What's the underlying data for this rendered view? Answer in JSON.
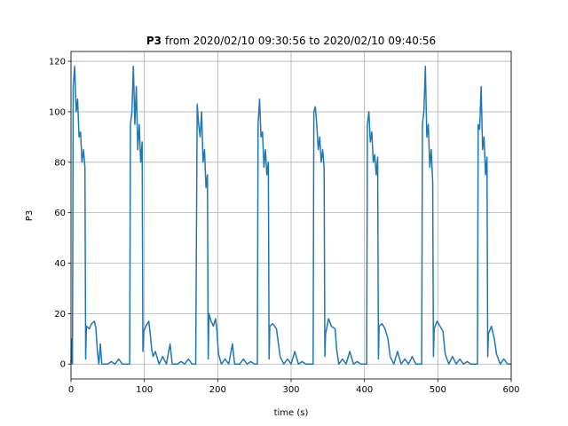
{
  "chart_data": {
    "type": "line",
    "title_bold": "P3",
    "title": "from 2020/02/10 09:30:56 to 2020/02/10 09:40:56",
    "xlabel": "time (s)",
    "ylabel": "P3",
    "color": "#1f77b4",
    "grid": true,
    "xlim": [
      0,
      600
    ],
    "xticks": [
      0,
      100,
      200,
      300,
      400,
      500,
      600
    ],
    "ylim": [
      -5.9,
      123.9
    ],
    "yticks": [
      0,
      20,
      40,
      60,
      80,
      100,
      120
    ],
    "x": [
      0,
      1,
      2,
      3,
      5,
      7,
      9,
      11,
      13,
      15,
      17,
      19,
      20,
      21,
      25,
      28,
      32,
      34,
      36,
      38,
      40,
      42,
      50,
      55,
      60,
      65,
      70,
      75,
      80,
      81,
      83,
      85,
      87,
      89,
      91,
      93,
      95,
      97,
      98,
      99,
      102,
      106,
      108,
      110,
      112,
      115,
      118,
      120,
      125,
      130,
      135,
      138,
      145,
      150,
      155,
      160,
      165,
      170,
      172,
      174,
      176,
      178,
      180,
      182,
      184,
      186,
      187,
      188,
      191,
      194,
      197,
      199,
      201,
      205,
      210,
      215,
      220,
      223,
      230,
      235,
      240,
      245,
      250,
      254,
      255,
      257,
      259,
      261,
      263,
      265,
      267,
      269,
      270,
      271,
      275,
      280,
      285,
      290,
      295,
      300,
      305,
      310,
      315,
      320,
      325,
      330,
      331,
      333,
      335,
      337,
      339,
      341,
      343,
      345,
      346,
      347,
      351,
      355,
      360,
      362,
      365,
      370,
      375,
      380,
      385,
      390,
      395,
      403,
      404,
      406,
      408,
      410,
      412,
      414,
      416,
      418,
      419,
      420,
      424,
      428,
      432,
      435,
      440,
      445,
      450,
      455,
      460,
      465,
      470,
      478,
      479,
      481,
      483,
      485,
      487,
      489,
      491,
      493,
      494,
      495,
      499,
      503,
      507,
      510,
      515,
      520,
      525,
      530,
      535,
      540,
      545,
      554,
      555,
      557,
      559,
      561,
      563,
      565,
      567,
      568,
      569,
      573,
      577,
      580,
      585,
      590,
      595,
      600
    ],
    "values": [
      0,
      10,
      0,
      110,
      118,
      100,
      105,
      90,
      92,
      80,
      85,
      78,
      2,
      15,
      14,
      16,
      17,
      14,
      5,
      0,
      8,
      0,
      0,
      1,
      0,
      2,
      0,
      0,
      0,
      95,
      100,
      118,
      95,
      110,
      85,
      95,
      80,
      88,
      5,
      13,
      15,
      17,
      12,
      6,
      3,
      5,
      2,
      0,
      3,
      0,
      8,
      0,
      0,
      1,
      0,
      2,
      0,
      0,
      103,
      95,
      90,
      100,
      80,
      85,
      70,
      75,
      2,
      20,
      17,
      15,
      18,
      13,
      4,
      0,
      2,
      0,
      8,
      0,
      0,
      2,
      0,
      1,
      0,
      0,
      95,
      105,
      90,
      92,
      78,
      85,
      75,
      80,
      2,
      15,
      16,
      14,
      3,
      0,
      2,
      0,
      5,
      0,
      1,
      0,
      0,
      0,
      100,
      102,
      95,
      85,
      90,
      80,
      85,
      78,
      3,
      12,
      18,
      15,
      14,
      6,
      0,
      2,
      0,
      5,
      0,
      1,
      0,
      0,
      95,
      100,
      88,
      92,
      80,
      83,
      75,
      82,
      2,
      15,
      16,
      14,
      10,
      3,
      0,
      5,
      0,
      2,
      0,
      3,
      0,
      0,
      95,
      100,
      118,
      90,
      95,
      78,
      85,
      72,
      3,
      14,
      17,
      15,
      13,
      4,
      0,
      3,
      0,
      2,
      0,
      1,
      0,
      0,
      95,
      93,
      110,
      85,
      90,
      75,
      82,
      3,
      12,
      15,
      10,
      4,
      0,
      2,
      0,
      0
    ]
  }
}
